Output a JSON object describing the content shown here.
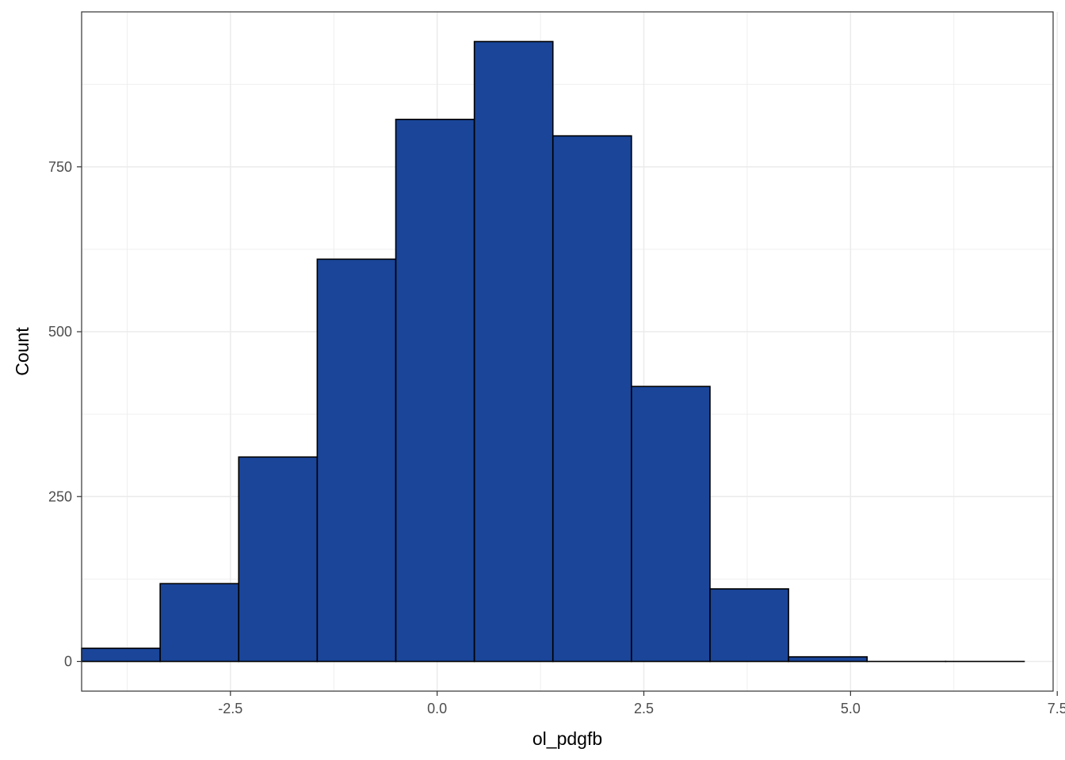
{
  "chart_data": {
    "type": "bar",
    "xlabel": "ol_pdgfb",
    "ylabel": "Count",
    "xlim": [
      -4.3,
      7.45
    ],
    "ylim": [
      -45,
      985
    ],
    "x_breaks": [
      -2.5,
      0.0,
      2.5,
      5.0,
      7.5
    ],
    "x_tick_labels": [
      "-2.5",
      "0.0",
      "2.5",
      "5.0",
      "7.5"
    ],
    "y_breaks": [
      0,
      250,
      500,
      750
    ],
    "y_tick_labels": [
      "0",
      "250",
      "500",
      "750"
    ],
    "grid": true,
    "bar_fill": "#1A4599",
    "bar_outline": "#000000",
    "bins": [
      {
        "x0": -4.3,
        "x1": -3.35,
        "count": 20
      },
      {
        "x0": -3.35,
        "x1": -2.4,
        "count": 118
      },
      {
        "x0": -2.4,
        "x1": -1.45,
        "count": 310
      },
      {
        "x0": -1.45,
        "x1": -0.5,
        "count": 610
      },
      {
        "x0": -0.5,
        "x1": 0.45,
        "count": 822
      },
      {
        "x0": 0.45,
        "x1": 1.4,
        "count": 940
      },
      {
        "x0": 1.4,
        "x1": 2.35,
        "count": 797
      },
      {
        "x0": 2.35,
        "x1": 3.3,
        "count": 417
      },
      {
        "x0": 3.3,
        "x1": 4.25,
        "count": 110
      },
      {
        "x0": 4.25,
        "x1": 5.2,
        "count": 7
      },
      {
        "x0": 5.2,
        "x1": 6.15,
        "count": 0
      },
      {
        "x0": 6.15,
        "x1": 7.1,
        "count": 0
      }
    ]
  }
}
